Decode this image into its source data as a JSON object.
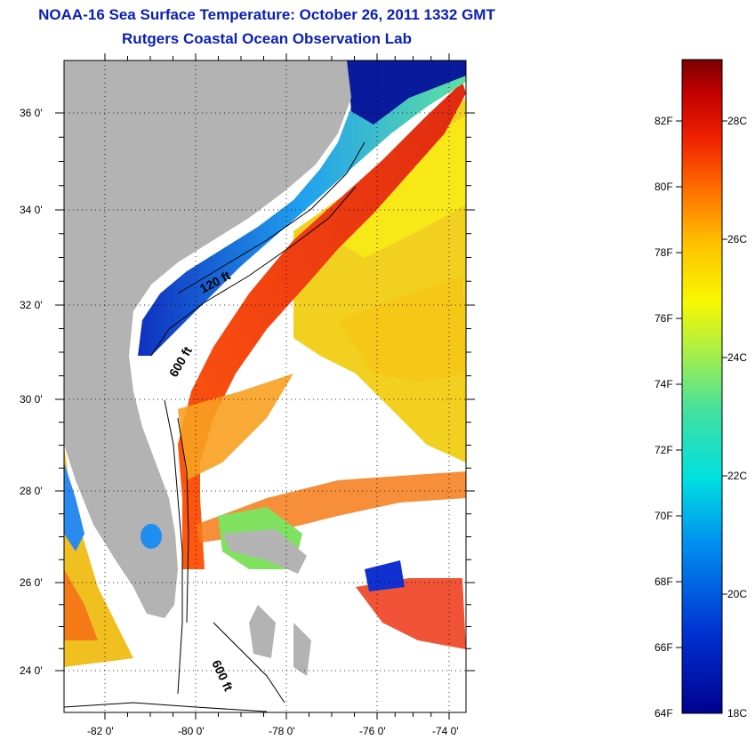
{
  "title": {
    "line1": "NOAA-16 Sea Surface Temperature:  October 26, 2011 1332 GMT",
    "line2": "Rutgers Coastal Ocean Observation Lab"
  },
  "map": {
    "lat_labels": [
      "36 0'",
      "34 0'",
      "32 0'",
      "30 0'",
      "28 0'",
      "26 0'",
      "24 0'"
    ],
    "lon_labels": [
      "-82 0'",
      "-80 0'",
      "-78 0'",
      "-76 0'",
      "-74 0'"
    ],
    "contour_labels": [
      "120 ft",
      "600 ft",
      "600 ft"
    ],
    "colors": {
      "land": "#b3b3b3",
      "cloud": "#ffffff",
      "cold": "#0a1a9c",
      "warm": "#e63b10"
    }
  },
  "colorbar": {
    "fahrenheit_labels": [
      "82F",
      "80F",
      "78F",
      "76F",
      "74F",
      "72F",
      "70F",
      "68F",
      "66F",
      "64F"
    ],
    "celsius_labels": [
      "28C",
      "26C",
      "24C",
      "22C",
      "20C",
      "18C"
    ],
    "range_f": [
      64,
      84
    ]
  }
}
